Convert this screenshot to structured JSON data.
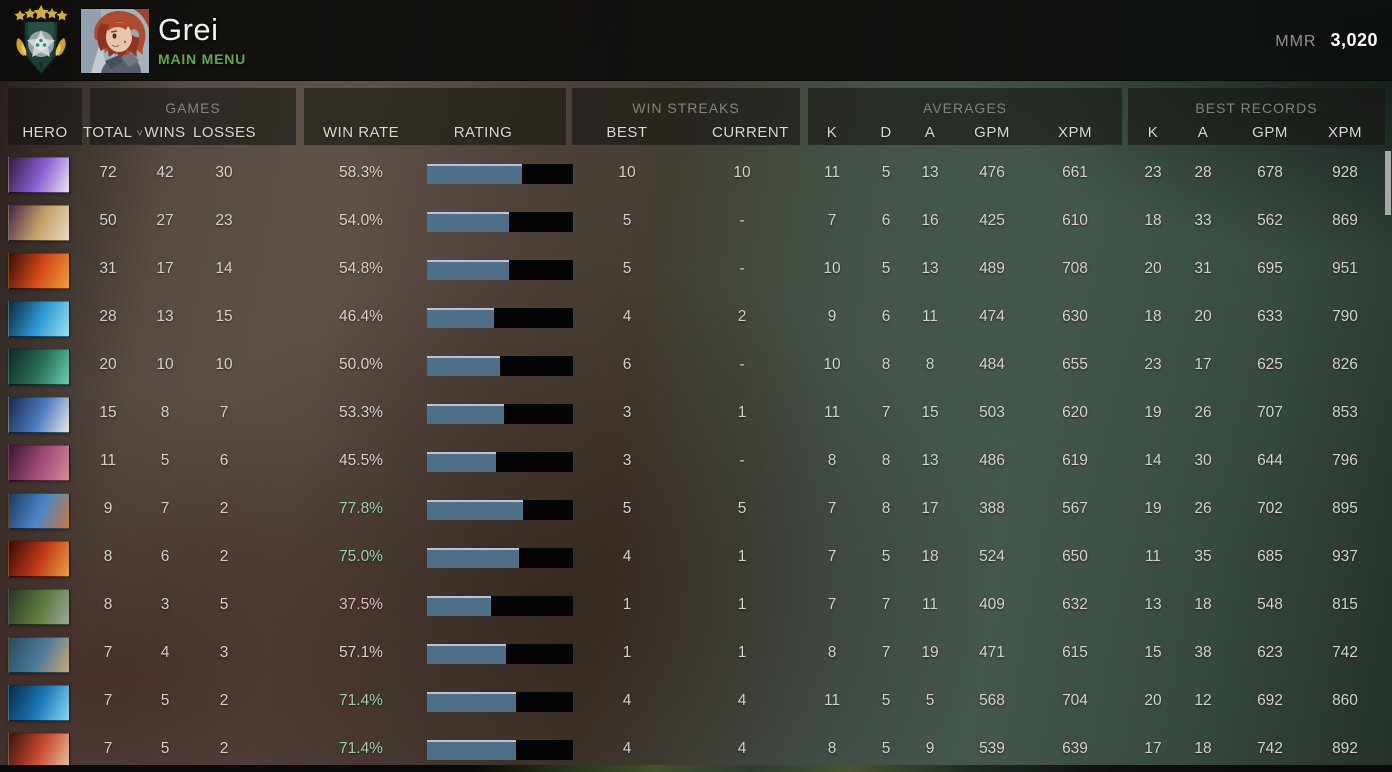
{
  "header": {
    "player_name": "Grei",
    "menu_label": "MAIN MENU",
    "mmr_label": "MMR",
    "mmr_value": "3,020",
    "rank_stars": 5
  },
  "theme": {
    "accent_green": "#64aa42",
    "win_rate_good": "#9fd2a4",
    "win_rate_bad": "#e3b9c0",
    "win_rate_neutral": "#d6d3cb",
    "rating_bar_fill": "#4d6f87",
    "rating_bar_bg": "#050505",
    "medal_gold": "#d4af37"
  },
  "columns": {
    "groups": {
      "games": "GAMES",
      "win_streaks": "WIN STREAKS",
      "averages": "AVERAGES",
      "best_records": "BEST RECORDS"
    },
    "hero": "HERO",
    "total": "TOTAL",
    "sort_chevron": "˅",
    "wins": "WINS",
    "losses": "LOSSES",
    "win_rate": "WIN RATE",
    "rating": "RATING",
    "best": "BEST",
    "current": "CURRENT",
    "avg_k": "K",
    "avg_d": "D",
    "avg_a": "A",
    "avg_gpm": "GPM",
    "avg_xpm": "XPM",
    "best_k": "K",
    "best_a": "A",
    "best_gpm": "GPM",
    "best_xpm": "XPM"
  },
  "rows": [
    {
      "hero": "void-spirit",
      "hero_colors": [
        "#2e1c3e",
        "#8a5fd0",
        "#e8e4f0"
      ],
      "total": "72",
      "wins": "42",
      "losses": "30",
      "win_rate": "58.3%",
      "wr": "neutral",
      "rating_fill": 0.65,
      "best": "10",
      "current": "10",
      "k": "11",
      "d": "5",
      "a": "13",
      "gpm": "476",
      "xpm": "661",
      "bk": "23",
      "ba": "28",
      "bgpm": "678",
      "bxpm": "928"
    },
    {
      "hero": "invoker",
      "hero_colors": [
        "#47264c",
        "#c5a065",
        "#ead9c1"
      ],
      "total": "50",
      "wins": "27",
      "losses": "23",
      "win_rate": "54.0%",
      "wr": "neutral",
      "rating_fill": 0.56,
      "best": "5",
      "current": "-",
      "k": "7",
      "d": "6",
      "a": "16",
      "gpm": "425",
      "xpm": "610",
      "bk": "18",
      "ba": "33",
      "bgpm": "562",
      "bxpm": "869"
    },
    {
      "hero": "ember-spirit",
      "hero_colors": [
        "#380e07",
        "#d4491a",
        "#f0a030"
      ],
      "total": "31",
      "wins": "17",
      "losses": "14",
      "win_rate": "54.8%",
      "wr": "neutral",
      "rating_fill": 0.56,
      "best": "5",
      "current": "-",
      "k": "10",
      "d": "5",
      "a": "13",
      "gpm": "489",
      "xpm": "708",
      "bk": "20",
      "ba": "31",
      "bgpm": "695",
      "bxpm": "951"
    },
    {
      "hero": "storm-spirit",
      "hero_colors": [
        "#0e2a3e",
        "#2a9ad4",
        "#9fe0f0"
      ],
      "total": "28",
      "wins": "13",
      "losses": "15",
      "win_rate": "46.4%",
      "wr": "neutral",
      "rating_fill": 0.46,
      "best": "4",
      "current": "2",
      "k": "9",
      "d": "6",
      "a": "11",
      "gpm": "474",
      "xpm": "630",
      "bk": "18",
      "ba": "20",
      "bgpm": "633",
      "bxpm": "790"
    },
    {
      "hero": "leshrac",
      "hero_colors": [
        "#0f2a24",
        "#2a6e5a",
        "#67d0b0"
      ],
      "total": "20",
      "wins": "10",
      "losses": "10",
      "win_rate": "50.0%",
      "wr": "neutral",
      "rating_fill": 0.5,
      "best": "6",
      "current": "-",
      "k": "10",
      "d": "8",
      "a": "8",
      "gpm": "484",
      "xpm": "655",
      "bk": "23",
      "ba": "17",
      "bgpm": "625",
      "bxpm": "826"
    },
    {
      "hero": "zeus",
      "hero_colors": [
        "#1a2a4a",
        "#4a7ac0",
        "#e8e8e8"
      ],
      "total": "15",
      "wins": "8",
      "losses": "7",
      "win_rate": "53.3%",
      "wr": "neutral",
      "rating_fill": 0.53,
      "best": "3",
      "current": "1",
      "k": "11",
      "d": "7",
      "a": "15",
      "gpm": "503",
      "xpm": "620",
      "bk": "19",
      "ba": "26",
      "bgpm": "707",
      "bxpm": "853"
    },
    {
      "hero": "magnus",
      "hero_colors": [
        "#381730",
        "#a04a78",
        "#d88a9a"
      ],
      "total": "11",
      "wins": "5",
      "losses": "6",
      "win_rate": "45.5%",
      "wr": "neutral",
      "rating_fill": 0.47,
      "best": "3",
      "current": "-",
      "k": "8",
      "d": "8",
      "a": "13",
      "gpm": "486",
      "xpm": "619",
      "bk": "14",
      "ba": "30",
      "bgpm": "644",
      "bxpm": "796"
    },
    {
      "hero": "ogre-magi",
      "hero_colors": [
        "#1e3a5e",
        "#4a86c8",
        "#c87a3a"
      ],
      "total": "9",
      "wins": "7",
      "losses": "2",
      "win_rate": "77.8%",
      "wr": "good",
      "rating_fill": 0.66,
      "best": "5",
      "current": "5",
      "k": "7",
      "d": "8",
      "a": "17",
      "gpm": "388",
      "xpm": "567",
      "bk": "19",
      "ba": "26",
      "bgpm": "702",
      "bxpm": "895"
    },
    {
      "hero": "lion",
      "hero_colors": [
        "#3a0c08",
        "#c03818",
        "#e8a040"
      ],
      "total": "8",
      "wins": "6",
      "losses": "2",
      "win_rate": "75.0%",
      "wr": "good",
      "rating_fill": 0.63,
      "best": "4",
      "current": "1",
      "k": "7",
      "d": "5",
      "a": "18",
      "gpm": "524",
      "xpm": "650",
      "bk": "11",
      "ba": "35",
      "bgpm": "685",
      "bxpm": "937"
    },
    {
      "hero": "treant-protector",
      "hero_colors": [
        "#2a3328",
        "#5a7a3a",
        "#9aa89a"
      ],
      "total": "8",
      "wins": "3",
      "losses": "5",
      "win_rate": "37.5%",
      "wr": "bad",
      "rating_fill": 0.44,
      "best": "1",
      "current": "1",
      "k": "7",
      "d": "7",
      "a": "11",
      "gpm": "409",
      "xpm": "632",
      "bk": "13",
      "ba": "18",
      "bgpm": "548",
      "bxpm": "815"
    },
    {
      "hero": "kunkka",
      "hero_colors": [
        "#2a4a5e",
        "#4a7a9a",
        "#c8a878"
      ],
      "total": "7",
      "wins": "4",
      "losses": "3",
      "win_rate": "57.1%",
      "wr": "neutral",
      "rating_fill": 0.54,
      "best": "1",
      "current": "1",
      "k": "8",
      "d": "7",
      "a": "19",
      "gpm": "471",
      "xpm": "615",
      "bk": "15",
      "ba": "38",
      "bgpm": "623",
      "bxpm": "742"
    },
    {
      "hero": "morphling",
      "hero_colors": [
        "#0a2a42",
        "#1a78b8",
        "#8ad8f0"
      ],
      "total": "7",
      "wins": "5",
      "losses": "2",
      "win_rate": "71.4%",
      "wr": "good",
      "rating_fill": 0.61,
      "best": "4",
      "current": "4",
      "k": "11",
      "d": "5",
      "a": "5",
      "gpm": "568",
      "xpm": "704",
      "bk": "20",
      "ba": "12",
      "bgpm": "692",
      "bxpm": "860"
    },
    {
      "hero": "troll-warlord",
      "hero_colors": [
        "#3a140c",
        "#c84a30",
        "#e8c09a"
      ],
      "total": "7",
      "wins": "5",
      "losses": "2",
      "win_rate": "71.4%",
      "wr": "good",
      "rating_fill": 0.61,
      "best": "4",
      "current": "4",
      "k": "8",
      "d": "5",
      "a": "9",
      "gpm": "539",
      "xpm": "639",
      "bk": "17",
      "ba": "18",
      "bgpm": "742",
      "bxpm": "892"
    }
  ]
}
